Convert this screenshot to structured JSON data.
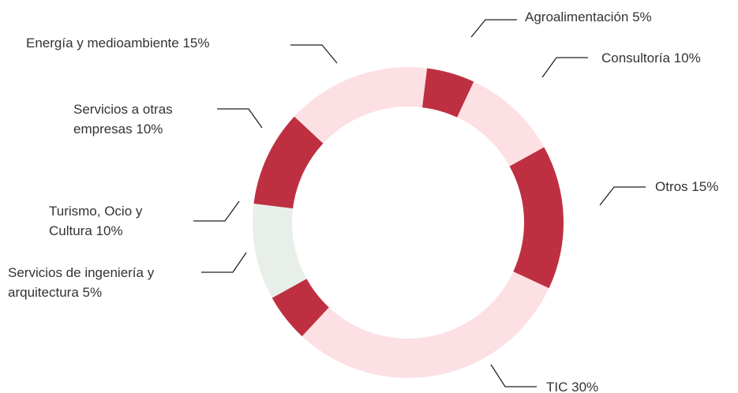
{
  "chart_data": {
    "type": "donut",
    "categories": [
      "Agroalimentación",
      "Consultoría",
      "Otros",
      "TIC",
      "Servicios de ingeniería y arquitectura",
      "Turismo, Ocio y Cultura",
      "Servicios a otras empresas",
      "Energía y medioambiente"
    ],
    "values": [
      5,
      10,
      15,
      30,
      5,
      10,
      10,
      15
    ],
    "value_labels": [
      "5%",
      "10%",
      "15%",
      "30%",
      "5%",
      "10%",
      "10%",
      "15%"
    ],
    "colors": [
      "#be3041",
      "#fde0e4",
      "#be3041",
      "#fde0e4",
      "#be3041",
      "#e8efe9",
      "#be3041",
      "#fde0e4"
    ]
  }
}
